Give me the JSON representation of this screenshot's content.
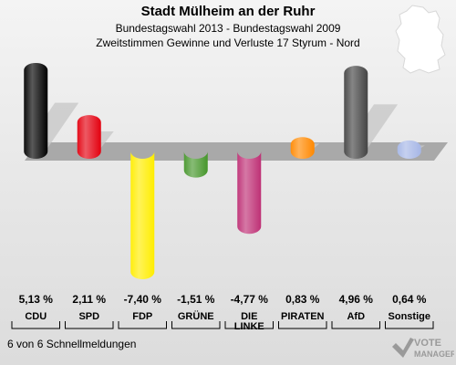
{
  "header": {
    "title": "Stadt Mülheim an der Ruhr",
    "subtitle": "Bundestagswahl 2013 - Bundestagswahl 2009",
    "subtitle2": "Zweitstimmen Gewinne und Verluste 17 Styrum - Nord"
  },
  "footer": {
    "note": "6 von 6 Schnellmeldungen",
    "logo_text": "VOTE MANAGER"
  },
  "chart_data": {
    "type": "bar",
    "title": "Stadt Mülheim an der Ruhr",
    "categories": [
      "CDU",
      "SPD",
      "FDP",
      "GRÜNE",
      "DIE LINKE",
      "PIRATEN",
      "AfD",
      "Sonstige"
    ],
    "values": [
      5.13,
      2.11,
      -7.4,
      -1.51,
      -4.77,
      0.83,
      4.96,
      0.64
    ],
    "value_labels": [
      "5,13 %",
      "2,11 %",
      "-7,40 %",
      "-1,51 %",
      "-4,77 %",
      "0,83 %",
      "4,96 %",
      "0,64 %"
    ],
    "colors": [
      "#000000",
      "#e3000f",
      "#ffed00",
      "#46962b",
      "#be3075",
      "#ff8800",
      "#444444",
      "#a6b6e6"
    ],
    "ylim": [
      -7.4,
      5.13
    ],
    "grid": false
  }
}
